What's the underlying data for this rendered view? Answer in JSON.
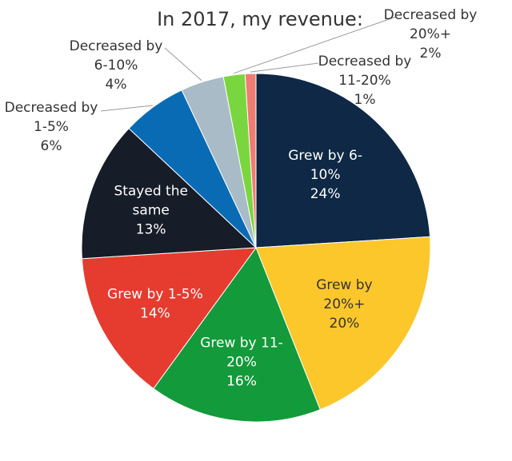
{
  "chart_data": {
    "type": "pie",
    "title": "In 2017, my revenue:",
    "slices": [
      {
        "label_lines": [
          "Grew by 6-",
          "10%"
        ],
        "value": 24,
        "value_label": "24%",
        "color": "#0e2845",
        "label_color": "#ffffff",
        "label_placement": "inside"
      },
      {
        "label_lines": [
          "Grew by",
          "20%+"
        ],
        "value": 20,
        "value_label": "20%",
        "color": "#fcc72b",
        "label_color": "#333333",
        "label_placement": "inside"
      },
      {
        "label_lines": [
          "Grew by 11-",
          "20%"
        ],
        "value": 16,
        "value_label": "16%",
        "color": "#139a3a",
        "label_color": "#ffffff",
        "label_placement": "inside"
      },
      {
        "label_lines": [
          "Grew by 1-5%"
        ],
        "value": 14,
        "value_label": "14%",
        "color": "#e63b2f",
        "label_color": "#ffffff",
        "label_placement": "inside"
      },
      {
        "label_lines": [
          "Stayed the",
          "same"
        ],
        "value": 13,
        "value_label": "13%",
        "color": "#161c28",
        "label_color": "#ffffff",
        "label_placement": "inside"
      },
      {
        "label_lines": [
          "Decreased by",
          "1-5%"
        ],
        "value": 6,
        "value_label": "6%",
        "color": "#0a6bb5",
        "label_color": "#333333",
        "label_placement": "outside"
      },
      {
        "label_lines": [
          "Decreased by",
          "6-10%"
        ],
        "value": 4,
        "value_label": "4%",
        "color": "#a9bbc6",
        "label_color": "#333333",
        "label_placement": "outside"
      },
      {
        "label_lines": [
          "Decreased by",
          "20%+"
        ],
        "value": 2,
        "value_label": "2%",
        "color": "#7ad63f",
        "label_color": "#333333",
        "label_placement": "outside"
      },
      {
        "label_lines": [
          "Decreased by",
          "11-20%"
        ],
        "value": 1,
        "value_label": "1%",
        "color": "#ef7c72",
        "label_color": "#333333",
        "label_placement": "outside"
      }
    ]
  }
}
